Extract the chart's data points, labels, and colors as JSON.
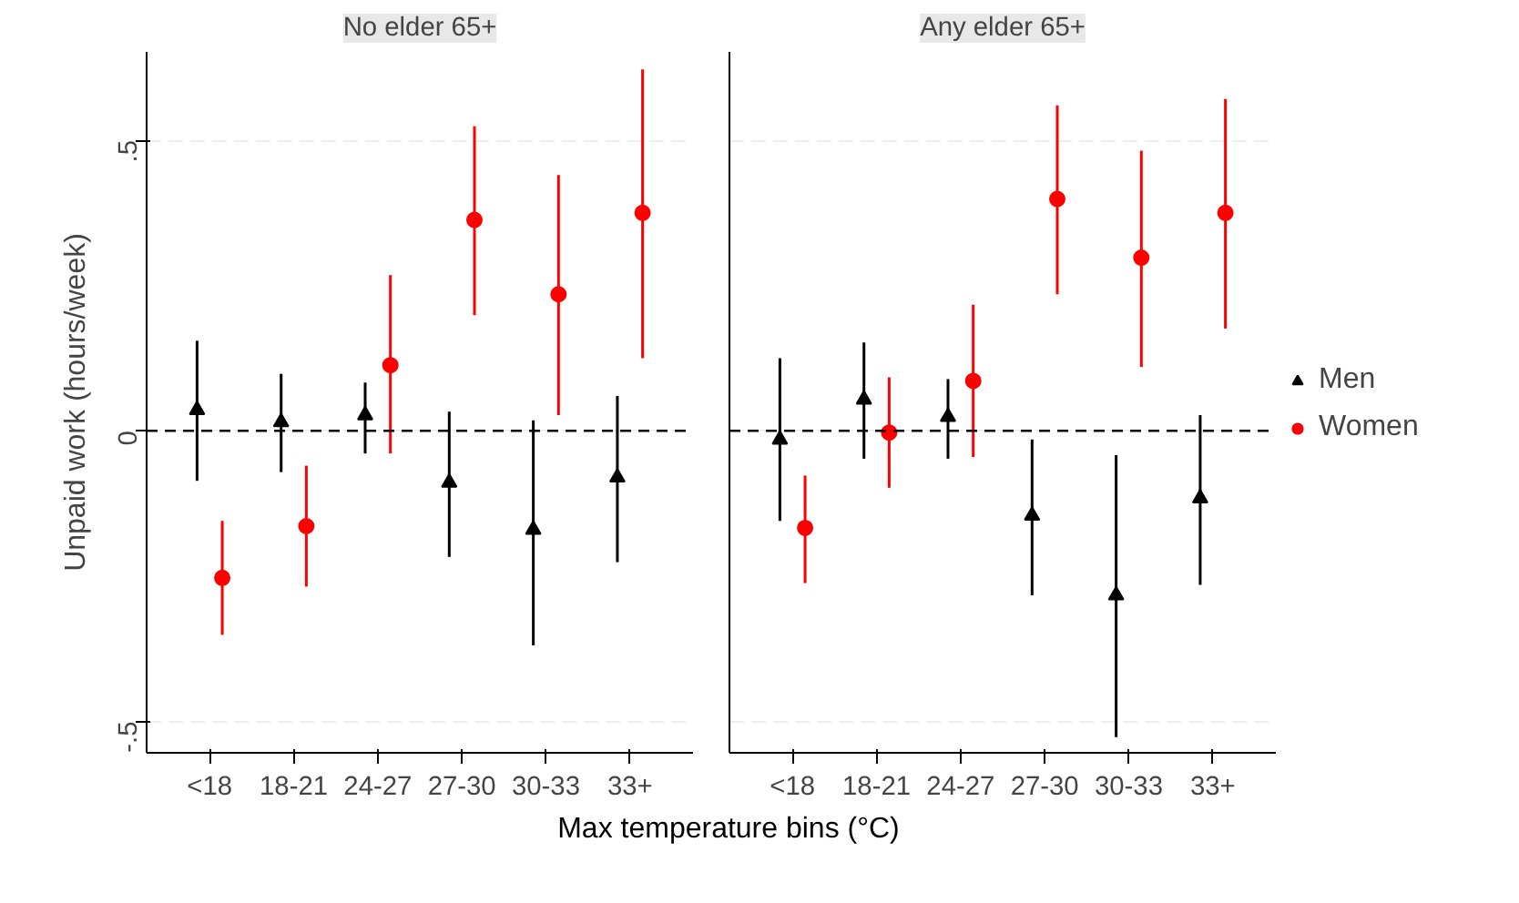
{
  "chart_data": [
    {
      "type": "scatter",
      "title": "No elder 65+",
      "ylabel": "Unpaid work (hours/week)",
      "categories": [
        "<18",
        "18-21",
        "24-27",
        "27-30",
        "30-33",
        "33+"
      ],
      "ylim": [
        -0.554,
        0.652
      ],
      "yticks": [
        {
          "value": -0.5,
          "label": "-.5"
        },
        {
          "value": 0,
          "label": "0"
        },
        {
          "value": 0.5,
          "label": ".5"
        }
      ],
      "grid": "y",
      "legend": false,
      "tick_labels": "xy",
      "ref_lines": [
        {
          "axis": "y",
          "value": 0,
          "line_style": "dashed",
          "color": "#000000"
        }
      ],
      "series": [
        {
          "color": "#000000",
          "marker": "triangle",
          "values": [
            0.036,
            0.015,
            0.027,
            -0.089,
            -0.17,
            -0.08
          ],
          "errors": [
            [
              -0.086,
              0.155
            ],
            [
              -0.071,
              0.098
            ],
            [
              -0.039,
              0.083
            ],
            [
              -0.217,
              0.033
            ],
            [
              -0.369,
              0.018
            ],
            [
              -0.226,
              0.06
            ]
          ]
        },
        {
          "color": "#ff0000",
          "marker": "circle",
          "values": [
            -0.253,
            -0.164,
            0.113,
            0.363,
            0.235,
            0.375
          ],
          "errors": [
            [
              -0.351,
              -0.155
            ],
            [
              -0.268,
              -0.06
            ],
            [
              -0.039,
              0.268
            ],
            [
              0.199,
              0.524
            ],
            [
              0.027,
              0.44
            ],
            [
              0.125,
              0.622
            ]
          ]
        }
      ]
    },
    {
      "type": "scatter",
      "title": "Any elder 65+",
      "xlabel": "Max temperature bins (°C)",
      "categories": [
        "<18",
        "18-21",
        "24-27",
        "27-30",
        "30-33",
        "33+"
      ],
      "ylim": [
        -0.554,
        0.652
      ],
      "yticks": [
        {
          "value": -0.5,
          "label": null
        },
        {
          "value": 0,
          "label": null
        },
        {
          "value": 0.5,
          "label": null
        }
      ],
      "grid": "y",
      "legend": "right",
      "tick_labels": "x",
      "ref_lines": [
        {
          "axis": "y",
          "value": 0,
          "line_style": "dashed",
          "color": "#000000"
        }
      ],
      "series": [
        {
          "name": "Men",
          "color": "#000000",
          "marker": "triangle",
          "values": [
            -0.015,
            0.054,
            0.024,
            -0.146,
            -0.283,
            -0.116
          ],
          "errors": [
            [
              -0.155,
              0.125
            ],
            [
              -0.048,
              0.152
            ],
            [
              -0.048,
              0.089
            ],
            [
              -0.283,
              -0.015
            ],
            [
              -0.527,
              -0.042
            ],
            [
              -0.265,
              0.027
            ]
          ]
        },
        {
          "name": "Women",
          "color": "#ff0000",
          "marker": "circle",
          "values": [
            -0.167,
            -0.003,
            0.086,
            0.399,
            0.298,
            0.375
          ],
          "errors": [
            [
              -0.262,
              -0.077
            ],
            [
              -0.098,
              0.092
            ],
            [
              -0.045,
              0.217
            ],
            [
              0.235,
              0.56
            ],
            [
              0.11,
              0.482
            ],
            [
              0.176,
              0.571
            ]
          ]
        }
      ]
    }
  ]
}
